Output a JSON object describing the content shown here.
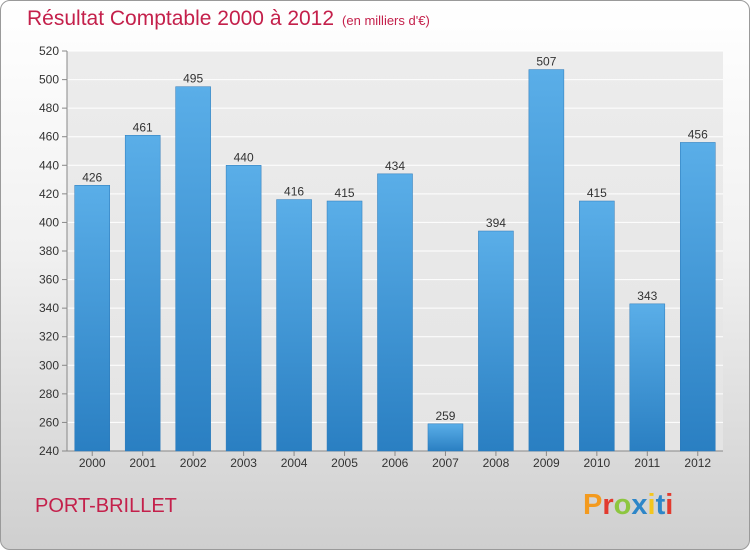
{
  "header": {
    "title": "Résultat Comptable 2000 à 2012",
    "unit": "(en milliers d'€)"
  },
  "footer": {
    "commune": "PORT-BRILLET",
    "logo_text": "Proxiti",
    "logo_colors": [
      "#f39a1e",
      "#e23a2e",
      "#8dc63f",
      "#2e86c8",
      "#f3c61e",
      "#2e86c8",
      "#e23a2e"
    ]
  },
  "chart_data": {
    "type": "bar",
    "categories": [
      "2000",
      "2001",
      "2002",
      "2003",
      "2004",
      "2005",
      "2006",
      "2007",
      "2008",
      "2009",
      "2010",
      "2011",
      "2012"
    ],
    "values": [
      426,
      461,
      495,
      440,
      416,
      415,
      434,
      259,
      394,
      507,
      415,
      343,
      456
    ],
    "title": "Résultat Comptable 2000 à 2012",
    "xlabel": "",
    "ylabel": "",
    "ylim": [
      240,
      520
    ],
    "yticks": [
      240,
      260,
      280,
      300,
      320,
      340,
      360,
      380,
      400,
      420,
      440,
      460,
      480,
      500,
      520
    ],
    "grid": true,
    "bar_color": "#3f97d8"
  }
}
